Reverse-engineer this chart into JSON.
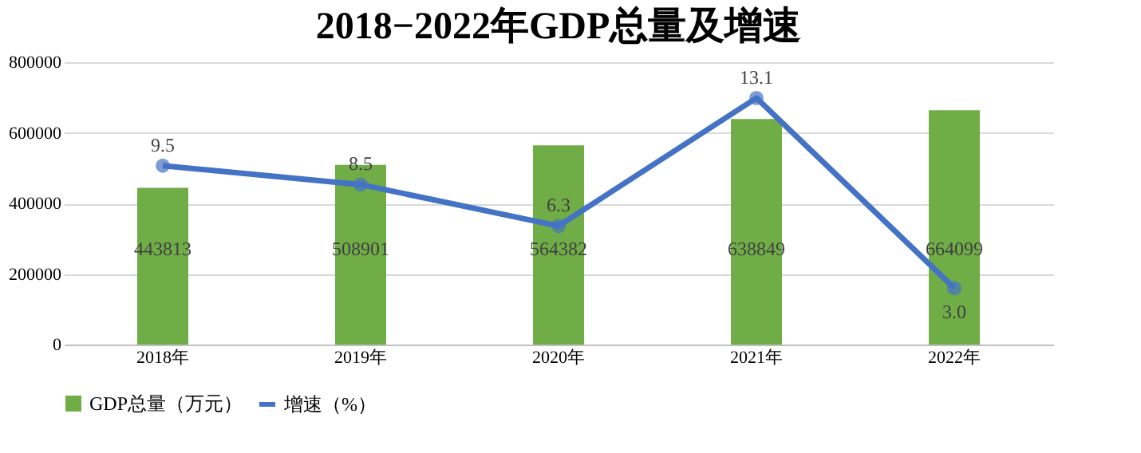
{
  "chart_data": {
    "type": "bar",
    "title": "2018−2022年GDP总量及增速",
    "categories": [
      "2018年",
      "2019年",
      "2020年",
      "2021年",
      "2022年"
    ],
    "series": [
      {
        "name": "GDP总量（万元）",
        "color": "#70ad47",
        "values": [
          443813,
          508901,
          564382,
          638849,
          664099
        ]
      },
      {
        "name": "增速（%）",
        "type": "line",
        "axis": "y2",
        "color": "#4472c4",
        "values": [
          9.5,
          8.5,
          6.3,
          13.1,
          3.0
        ],
        "value_labels": [
          "9.5",
          "8.5",
          "6.3",
          "13.1",
          "3.0"
        ]
      }
    ],
    "ylim": [
      0,
      800000
    ],
    "yticks": [
      0,
      200000,
      400000,
      600000,
      800000
    ],
    "y2lim": [
      0,
      15
    ],
    "grid": "y",
    "legend": "bottom",
    "marker": "circle",
    "line_style": "solid",
    "data_labels": true
  }
}
